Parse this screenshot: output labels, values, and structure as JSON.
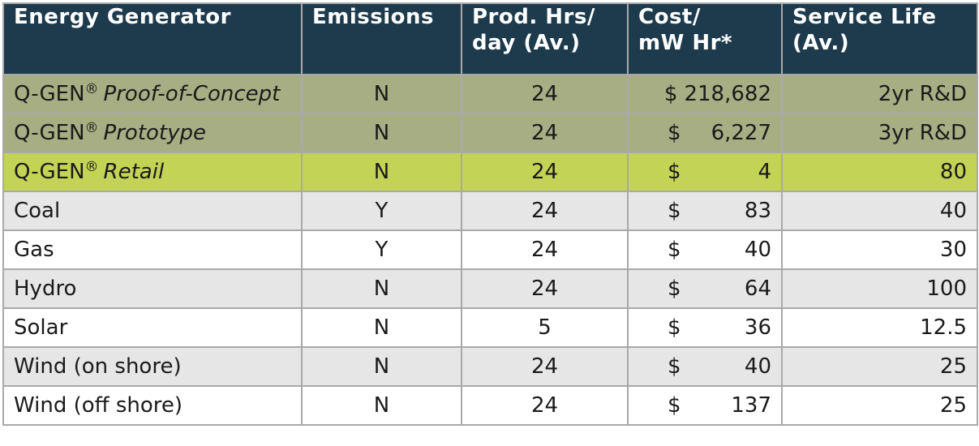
{
  "headers": {
    "generator": "Energy Generator",
    "emissions": "Emissions",
    "hours_line1": "Prod. Hrs/",
    "hours_line2": "day (Av.)",
    "cost_line1": "Cost/",
    "cost_line2": "mW Hr*",
    "life_line1": "Service Life",
    "life_line2": "(Av.)"
  },
  "brand": {
    "name": "Q-GEN",
    "mark": "®"
  },
  "rows": [
    {
      "generator": "Proof-of-Concept",
      "branded": true,
      "emissions": "N",
      "hours": "24",
      "currency": "$",
      "cost": "218,682",
      "life": "2yr R&D"
    },
    {
      "generator": "Prototype",
      "branded": true,
      "emissions": "N",
      "hours": "24",
      "currency": "$",
      "cost": "6,227",
      "life": "3yr R&D"
    },
    {
      "generator": "Retail",
      "branded": true,
      "emissions": "N",
      "hours": "24",
      "currency": "$",
      "cost": "4",
      "life": "80"
    },
    {
      "generator": "Coal",
      "emissions": "Y",
      "hours": "24",
      "currency": "$",
      "cost": "83",
      "life": "40"
    },
    {
      "generator": "Gas",
      "emissions": "Y",
      "hours": "24",
      "currency": "$",
      "cost": "40",
      "life": "30"
    },
    {
      "generator": "Hydro",
      "emissions": "N",
      "hours": "24",
      "currency": "$",
      "cost": "64",
      "life": "100"
    },
    {
      "generator": "Solar",
      "emissions": "N",
      "hours": "5",
      "currency": "$",
      "cost": "36",
      "life": "12.5"
    },
    {
      "generator": "Wind (on shore)",
      "emissions": "N",
      "hours": "24",
      "currency": "$",
      "cost": "40",
      "life": "25"
    },
    {
      "generator": "Wind (off shore)",
      "emissions": "N",
      "hours": "24",
      "currency": "$",
      "cost": "137",
      "life": "25"
    }
  ],
  "colors": {
    "header_bg": "#1d3b4c",
    "qgen_dev_bg": "#a7ae84",
    "qgen_retail_bg": "#c3d356",
    "row_alt_bg": "#e6e6e6",
    "border": "#a9a9a9"
  }
}
